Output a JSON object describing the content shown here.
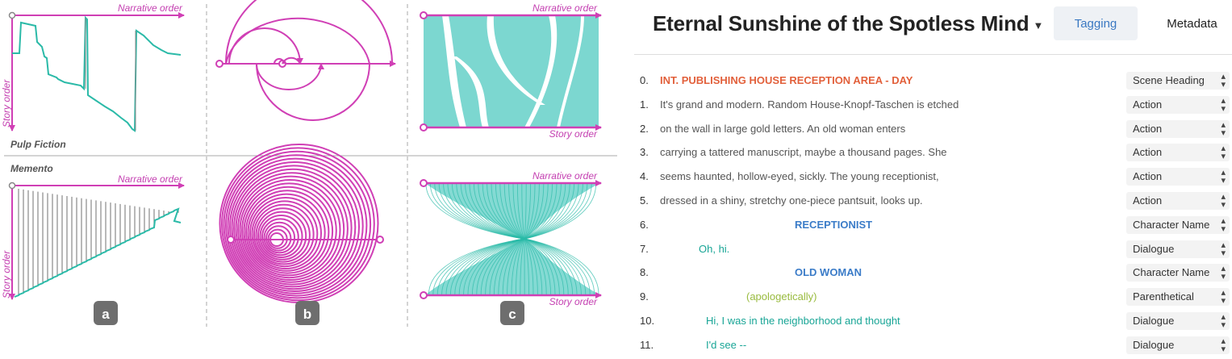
{
  "figure": {
    "axis_labels": {
      "narrative": "Narrative order",
      "story": "Story order"
    },
    "films": [
      "Pulp Fiction",
      "Memento"
    ],
    "badges": [
      "a",
      "b",
      "c"
    ],
    "colors": {
      "magenta": "#d03fb5",
      "teal": "#2bbaa8",
      "ribbon": "#6ed3cb",
      "badge": "#6e6e6e",
      "divider": "#aaaaaa"
    }
  },
  "script": {
    "title": "Eternal Sunshine of the Spotless Mind",
    "title_caret_icon": "caret-down-icon",
    "tabs": {
      "tagging": "Tagging",
      "metadata": "Metadata"
    },
    "rows": [
      {
        "num": "0.",
        "text": "INT. PUBLISHING HOUSE RECEPTION AREA - DAY",
        "style": "scene",
        "tag": "Scene Heading"
      },
      {
        "num": "1.",
        "text": "It's grand and modern.  Random House-Knopf-Taschen is etched",
        "style": "action",
        "tag": "Action"
      },
      {
        "num": "2.",
        "text": "on the wall in large gold letters.  An old woman enters",
        "style": "action",
        "tag": "Action"
      },
      {
        "num": "3.",
        "text": "carrying a tattered manuscript, maybe a thousand pages.  She",
        "style": "action",
        "tag": "Action"
      },
      {
        "num": "4.",
        "text": "seems haunted, hollow-eyed, sickly.  The young receptionist,",
        "style": "action",
        "tag": "Action"
      },
      {
        "num": "5.",
        "text": "dressed in a shiny, stretchy one-piece pantsuit, looks up.",
        "style": "action",
        "tag": "Action"
      },
      {
        "num": "6.",
        "text": "RECEPTIONIST",
        "style": "char",
        "tag": "Character Name"
      },
      {
        "num": "7.",
        "text": "Oh, hi.",
        "style": "dialogue",
        "tag": "Dialogue"
      },
      {
        "num": "8.",
        "text": "OLD WOMAN",
        "style": "char",
        "tag": "Character Name"
      },
      {
        "num": "9.",
        "text": "(apologetically)",
        "style": "paren",
        "tag": "Parenthetical"
      },
      {
        "num": "10.",
        "text": "Hi, I was in the neighborhood and thought",
        "style": "dialogue",
        "tag": "Dialogue"
      },
      {
        "num": "11.",
        "text": "I'd see --",
        "style": "dialogue",
        "tag": "Dialogue"
      }
    ],
    "select_icon": "updown-caret-icon"
  }
}
